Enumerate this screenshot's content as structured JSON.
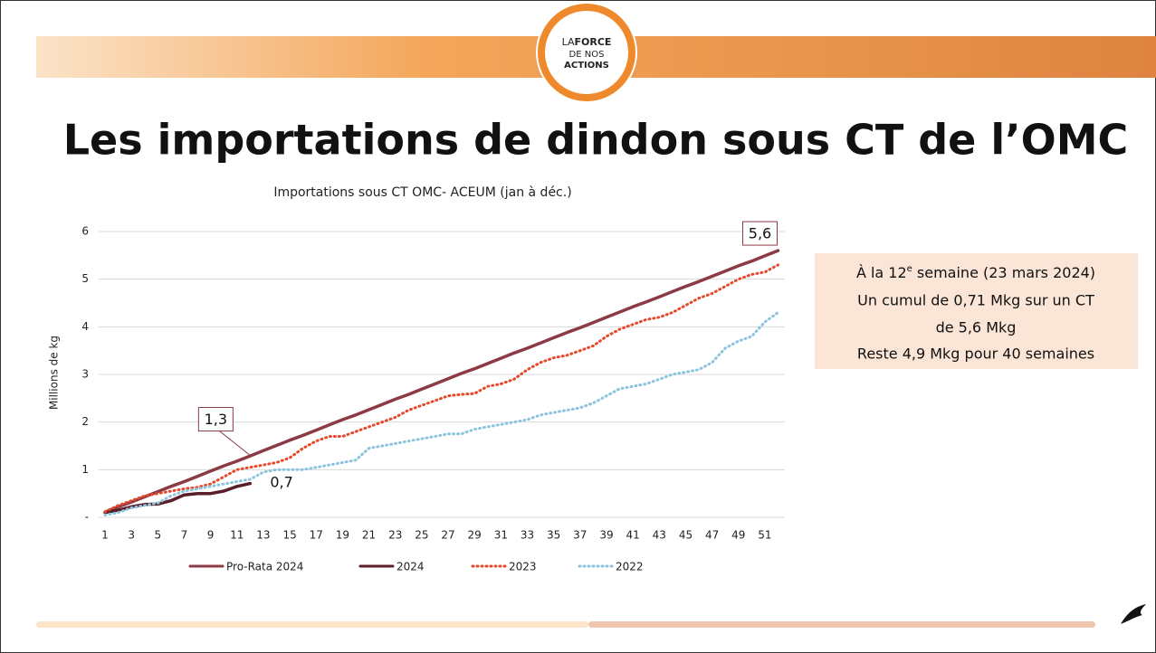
{
  "logo": [
    "LA",
    "FORCE",
    "DE NOS",
    "ACTIONS"
  ],
  "title": "Les importations de dindon sous CT de l’OMC",
  "note": [
    [
      "À la 12",
      "e",
      " semaine (23 mars 2024)"
    ],
    "Un cumul de 0,71 Mkg sur un CT",
    "de 5,6 Mkg",
    "Reste 4,9 Mkg pour 40 semaines"
  ],
  "chart_data": {
    "type": "line",
    "title": "Importations sous CT OMC- ACEUM (jan à déc.)",
    "y_label": "Millions de kg",
    "categories": [
      1,
      null,
      3,
      null,
      5,
      null,
      7,
      null,
      9,
      null,
      11,
      null,
      13,
      null,
      15,
      null,
      17,
      null,
      19,
      null,
      21,
      null,
      23,
      null,
      25,
      null,
      27,
      null,
      29,
      null,
      31,
      null,
      33,
      null,
      35,
      null,
      37,
      null,
      39,
      null,
      41,
      null,
      43,
      null,
      45,
      null,
      47,
      null,
      49,
      null,
      51,
      null
    ],
    "ylim": [
      0,
      6
    ],
    "yticks": [
      {
        "value": 0,
        "label": "-"
      },
      1,
      2,
      3,
      4,
      5,
      6
    ],
    "grid": true,
    "legend": "bottom",
    "series": [
      {
        "name": "Pro-Rata 2024",
        "color": "#8b3a46",
        "dash": "solid",
        "values": [
          0.11,
          0.22,
          0.32,
          0.43,
          0.54,
          0.65,
          0.75,
          0.86,
          0.97,
          1.08,
          1.18,
          1.29,
          1.4,
          1.51,
          1.62,
          1.72,
          1.83,
          1.94,
          2.05,
          2.15,
          2.26,
          2.37,
          2.48,
          2.58,
          2.69,
          2.8,
          2.91,
          3.02,
          3.12,
          3.23,
          3.34,
          3.45,
          3.55,
          3.66,
          3.77,
          3.88,
          3.98,
          4.09,
          4.2,
          4.31,
          4.42,
          4.52,
          4.63,
          4.74,
          4.85,
          4.95,
          5.06,
          5.17,
          5.28,
          5.38,
          5.49,
          5.6
        ]
      },
      {
        "name": "2024",
        "color": "#5a1e2a",
        "dash": "solid",
        "values": [
          0.1,
          0.15,
          0.22,
          0.27,
          0.28,
          0.35,
          0.47,
          0.5,
          0.5,
          0.55,
          0.65,
          0.71,
          null,
          null,
          null,
          null,
          null,
          null,
          null,
          null,
          null,
          null,
          null,
          null,
          null,
          null,
          null,
          null,
          null,
          null,
          null,
          null,
          null,
          null,
          null,
          null,
          null,
          null,
          null,
          null,
          null,
          null,
          null,
          null,
          null,
          null,
          null,
          null,
          null,
          null,
          null,
          null
        ]
      },
      {
        "name": "2023",
        "color": "#e8472a",
        "dash": "dotted",
        "values": [
          0.12,
          0.25,
          0.35,
          0.45,
          0.5,
          0.55,
          0.6,
          0.63,
          0.7,
          0.85,
          1.0,
          1.05,
          1.1,
          1.15,
          1.25,
          1.45,
          1.6,
          1.7,
          1.7,
          1.8,
          1.9,
          2.0,
          2.1,
          2.25,
          2.35,
          2.45,
          2.55,
          2.58,
          2.6,
          2.75,
          2.8,
          2.9,
          3.1,
          3.25,
          3.35,
          3.4,
          3.5,
          3.6,
          3.8,
          3.95,
          4.05,
          4.15,
          4.2,
          4.3,
          4.45,
          4.6,
          4.7,
          4.85,
          5.0,
          5.1,
          5.15,
          5.3
        ]
      },
      {
        "name": "2022",
        "color": "#8cc4dd",
        "dash": "dotted",
        "values": [
          0.05,
          0.1,
          0.2,
          0.25,
          0.3,
          0.45,
          0.55,
          0.6,
          0.65,
          0.7,
          0.75,
          0.8,
          0.95,
          1.0,
          1.0,
          1.0,
          1.05,
          1.1,
          1.15,
          1.2,
          1.45,
          1.5,
          1.55,
          1.6,
          1.65,
          1.7,
          1.75,
          1.75,
          1.85,
          1.9,
          1.95,
          2.0,
          2.05,
          2.15,
          2.2,
          2.25,
          2.3,
          2.4,
          2.55,
          2.7,
          2.75,
          2.8,
          2.9,
          3.0,
          3.05,
          3.1,
          3.25,
          3.55,
          3.7,
          3.8,
          4.1,
          4.3
        ]
      }
    ],
    "annotations": [
      {
        "text": "1,3",
        "x": 12,
        "y": 1.3,
        "boxed": true
      },
      {
        "text": "5,6",
        "x": 52,
        "y": 5.6,
        "boxed": true
      },
      {
        "text": "0,7",
        "x": 12,
        "y": 0.7,
        "boxed": false
      }
    ]
  }
}
